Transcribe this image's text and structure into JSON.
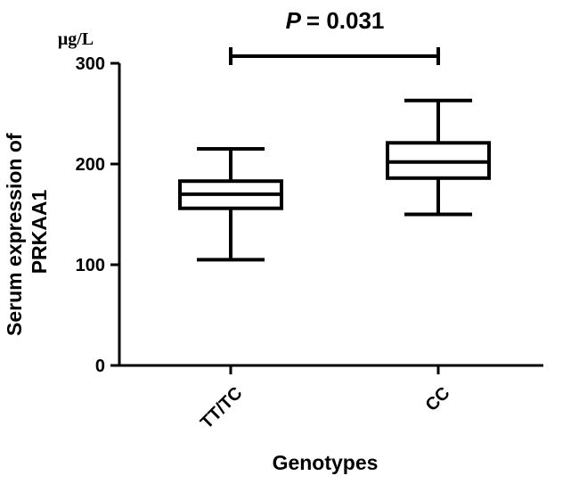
{
  "chart_data": {
    "type": "box",
    "categories": [
      "TT/TC",
      "CC"
    ],
    "boxes": [
      {
        "category": "TT/TC",
        "min": 105,
        "q1": 156,
        "median": 170,
        "q3": 183,
        "max": 215
      },
      {
        "category": "CC",
        "min": 150,
        "q1": 186,
        "median": 202,
        "q3": 221,
        "max": 263
      }
    ],
    "xlabel": "Genotypes",
    "ylabel_line1": "Serum expression of",
    "ylabel_line2": "PRKAA1",
    "unit": "μg/L",
    "ylim": [
      0,
      300
    ],
    "yticks": [
      "0",
      "100",
      "200",
      "300"
    ],
    "significance": {
      "p_label": "P",
      "p_value": "= 0.031",
      "between": [
        "TT/TC",
        "CC"
      ]
    }
  }
}
